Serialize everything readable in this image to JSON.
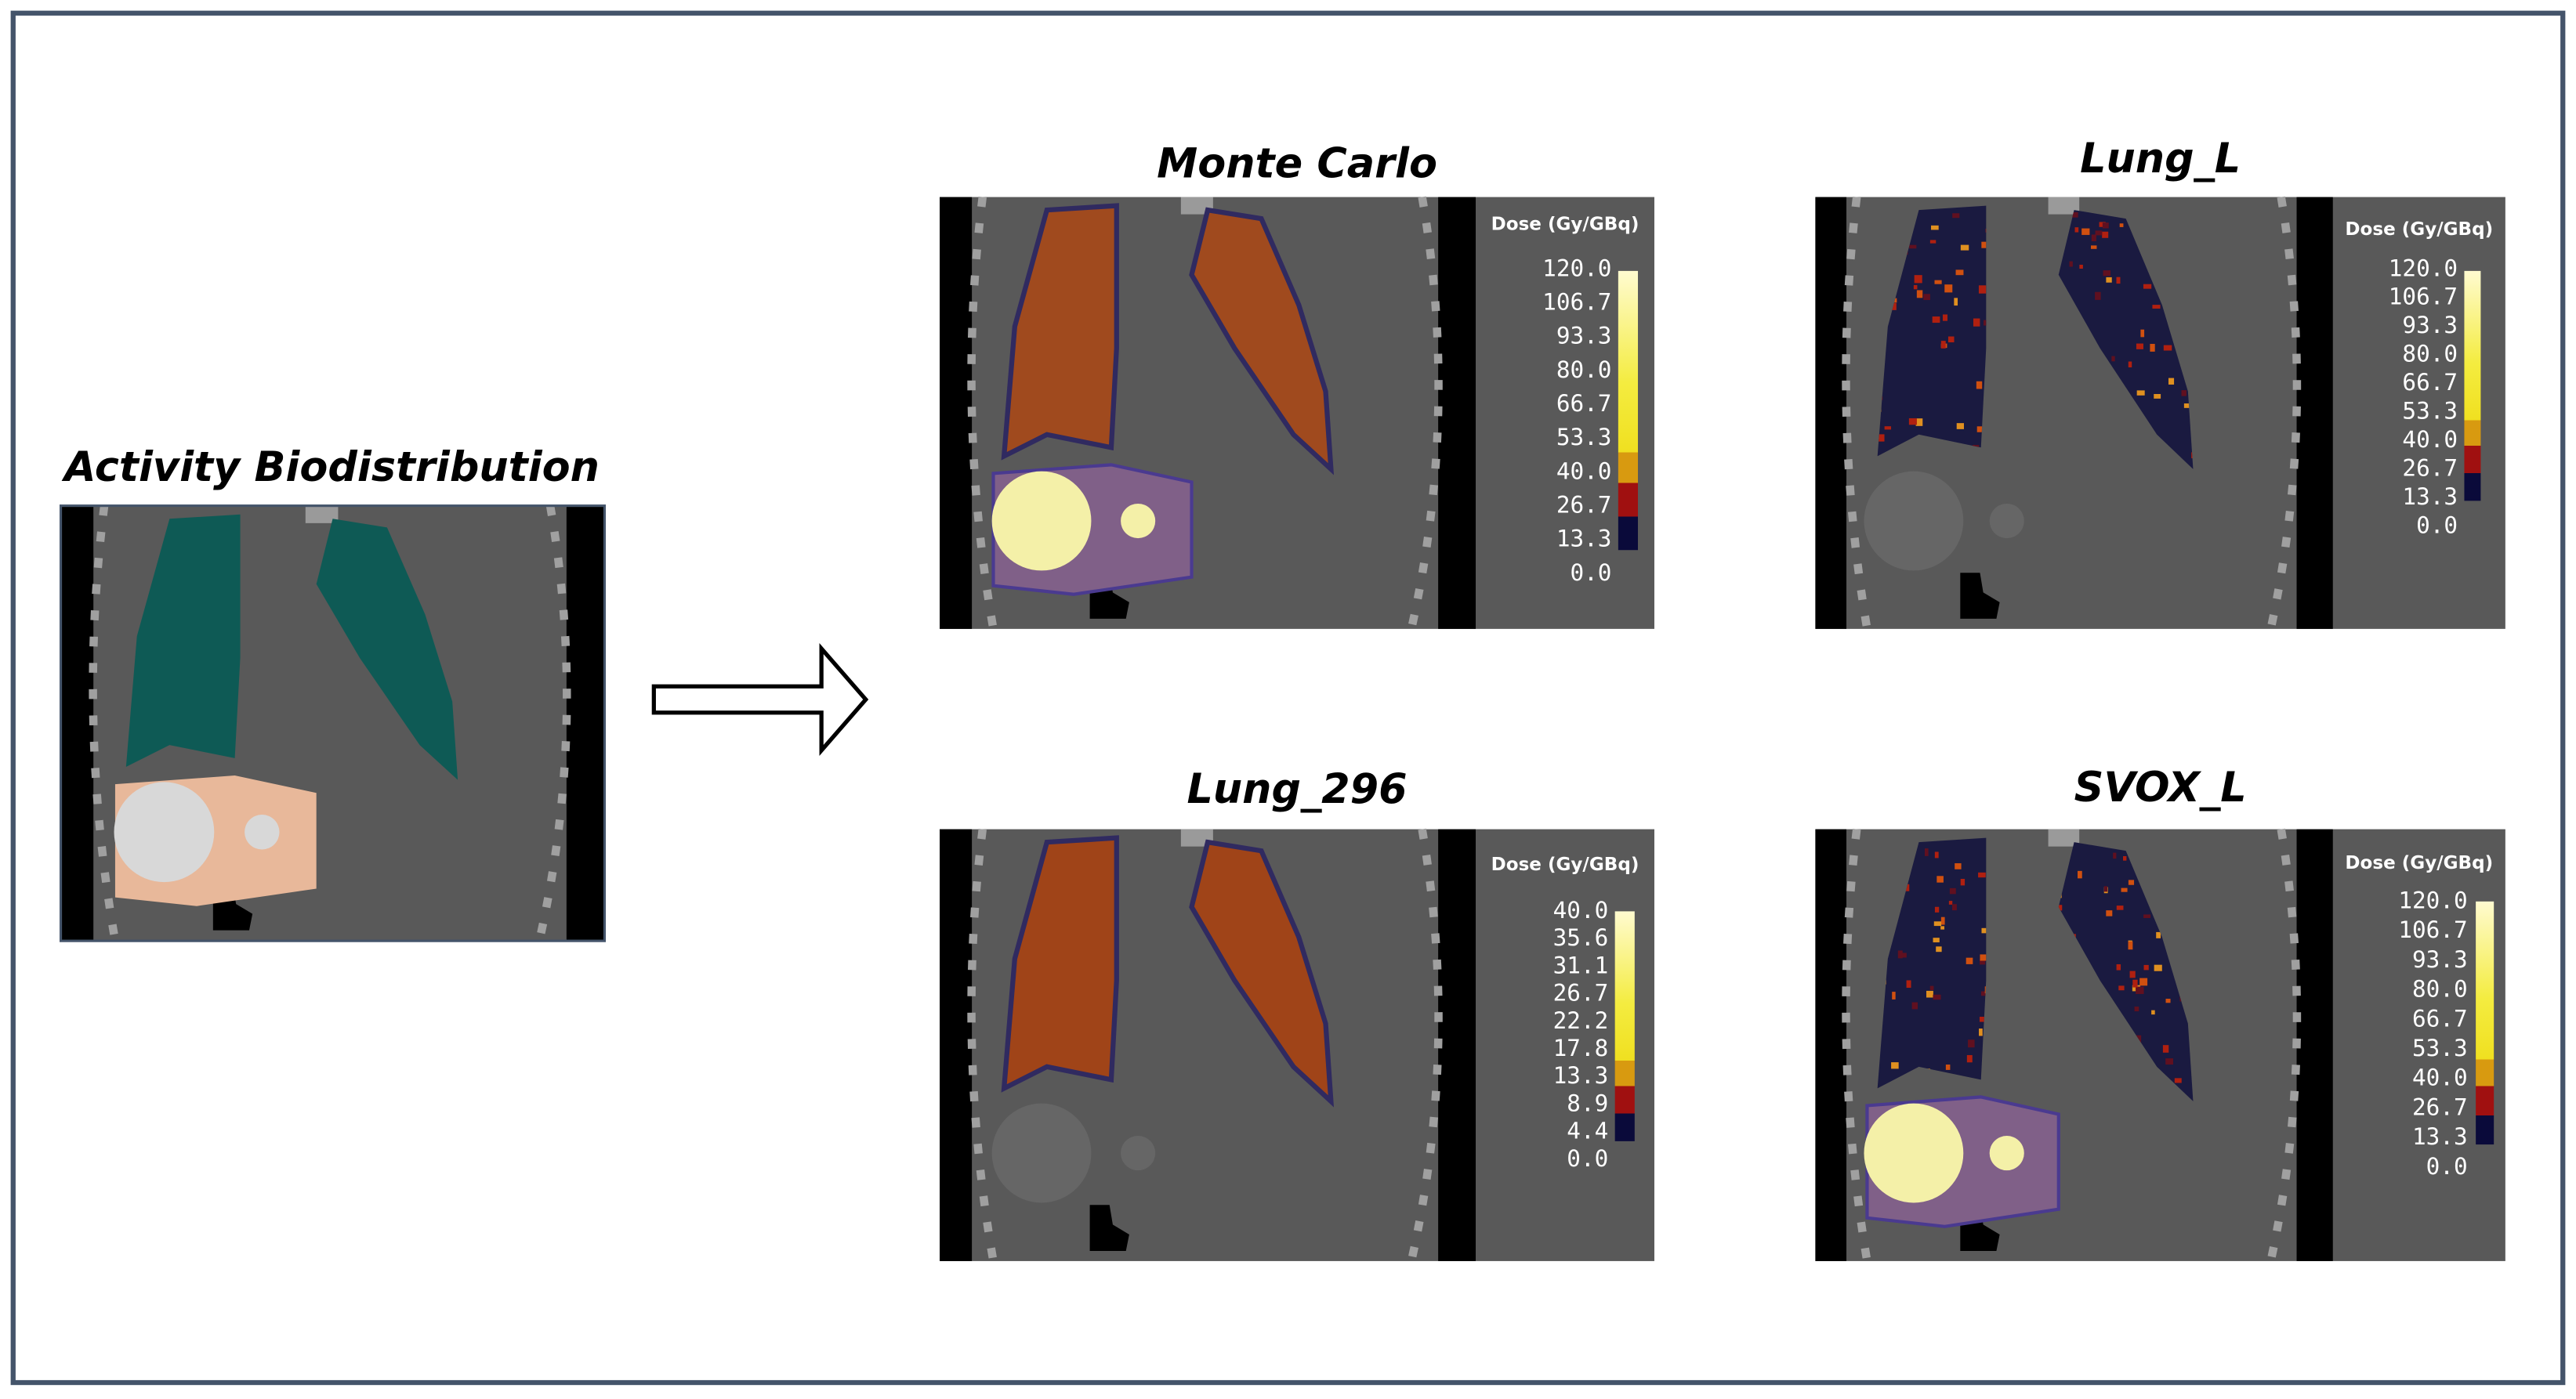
{
  "left": {
    "title": "Activity Biodistribution"
  },
  "panels": [
    {
      "title": "Monte Carlo",
      "colorbar_title": "Dose (Gy/GBq)",
      "colorbar_labels": [
        "120.0",
        "106.7",
        "93.3",
        "80.0",
        "66.7",
        "53.3",
        "40.0",
        "26.7",
        "13.3",
        "0.0"
      ]
    },
    {
      "title": "Lung_L",
      "colorbar_title": "Dose (Gy/GBq)",
      "colorbar_labels": [
        "120.0",
        "106.7",
        "93.3",
        "80.0",
        "66.7",
        "53.3",
        "40.0",
        "26.7",
        "13.3",
        "0.0"
      ]
    },
    {
      "title": "Lung_296",
      "colorbar_title": "Dose (Gy/GBq)",
      "colorbar_labels": [
        "40.0",
        "35.6",
        "31.1",
        "26.7",
        "22.2",
        "17.8",
        "13.3",
        "8.9",
        "4.4",
        "0.0"
      ]
    },
    {
      "title": "SVOX_L",
      "colorbar_title": "Dose (Gy/GBq)",
      "colorbar_labels": [
        "120.0",
        "106.7",
        "93.3",
        "80.0",
        "66.7",
        "53.3",
        "40.0",
        "26.7",
        "13.3",
        "0.0"
      ]
    }
  ]
}
